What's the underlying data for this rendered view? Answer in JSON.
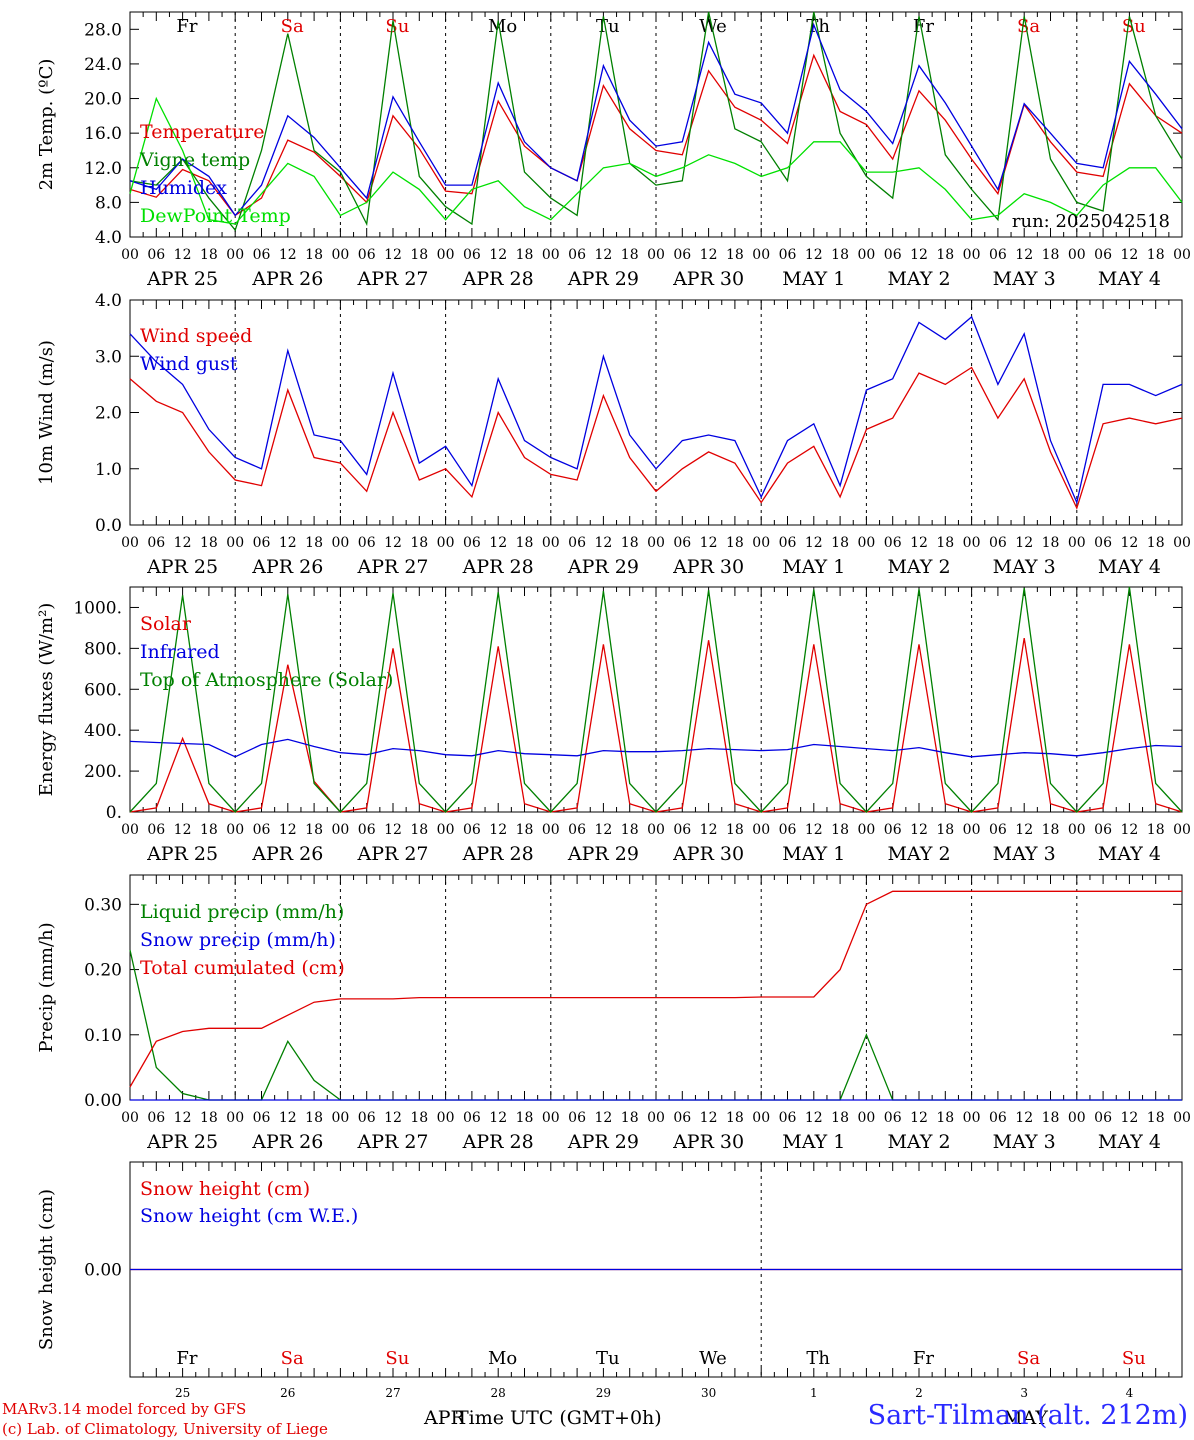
{
  "chart_data": [
    {
      "type": "line",
      "ylabel": "2m Temp. (ºC)",
      "yticks": [
        "4.0",
        "8.0",
        "12.0",
        "16.0",
        "20.0",
        "24.0",
        "28.0"
      ],
      "ylim": [
        4,
        30
      ],
      "x_hours": [
        0,
        6,
        12,
        18,
        24,
        30,
        36,
        42,
        48,
        54,
        60,
        66,
        72,
        78,
        84,
        90,
        96,
        102,
        108,
        114,
        120,
        126,
        132,
        138,
        144,
        150,
        156,
        162,
        168,
        174,
        180,
        186,
        192,
        198,
        204,
        210,
        216,
        222,
        228,
        234,
        240
      ],
      "weekdays": [
        "Fr",
        "Sa",
        "Su",
        "Mo",
        "Tu",
        "We",
        "Th",
        "Fr",
        "Sa",
        "Su"
      ],
      "weekday_colors": [
        "#000000",
        "#e00000",
        "#e00000",
        "#000000",
        "#000000",
        "#000000",
        "#000000",
        "#000000",
        "#e00000",
        "#e00000"
      ],
      "annotation": "run: 2025042518",
      "series": [
        {
          "name": "Temperature",
          "color": "#e00000",
          "values": [
            9.5,
            8.6,
            11.8,
            10.5,
            6.5,
            8.5,
            15.2,
            13.8,
            11.0,
            8.0,
            18.0,
            14.2,
            9.3,
            9.0,
            19.7,
            14.5,
            12.0,
            10.5,
            21.5,
            16.5,
            14.0,
            13.5,
            23.2,
            19.0,
            17.5,
            14.8,
            25.0,
            18.5,
            17.0,
            13.0,
            20.9,
            17.5,
            13.0,
            9.0,
            19.3,
            15.0,
            11.5,
            11.0,
            21.7,
            18.0,
            16.0
          ]
        },
        {
          "name": "Vigne temp",
          "color": "#008000",
          "values": [
            10.5,
            10.0,
            13.0,
            8.5,
            4.8,
            14.0,
            27.5,
            14.0,
            11.5,
            5.5,
            29.0,
            11.0,
            7.5,
            5.5,
            29.0,
            11.5,
            8.5,
            6.5,
            29.5,
            12.5,
            10.0,
            10.5,
            31.0,
            16.5,
            15.0,
            10.5,
            31.0,
            16.0,
            11.0,
            8.5,
            29.5,
            13.5,
            9.5,
            6.0,
            29.5,
            13.0,
            8.0,
            7.0,
            29.5,
            18.0,
            13.0
          ]
        },
        {
          "name": "Humidex",
          "color": "#0000e0",
          "values": [
            10.5,
            9.5,
            13.0,
            11.0,
            6.5,
            10.0,
            18.0,
            15.5,
            12.0,
            8.5,
            20.2,
            15.0,
            10.0,
            10.0,
            21.8,
            15.0,
            12.0,
            10.5,
            23.8,
            17.5,
            14.5,
            15.0,
            26.5,
            20.5,
            19.5,
            16.0,
            28.5,
            21.0,
            18.5,
            14.8,
            23.8,
            19.5,
            14.5,
            9.5,
            19.4,
            16.0,
            12.5,
            12.0,
            24.3,
            20.5,
            16.5
          ]
        },
        {
          "name": "DewPoint Temp",
          "color": "#00e000",
          "values": [
            9.0,
            20.0,
            14.0,
            6.0,
            5.5,
            9.0,
            12.5,
            11.0,
            6.5,
            8.0,
            11.5,
            9.5,
            6.0,
            9.5,
            10.5,
            7.5,
            6.0,
            9.0,
            12.0,
            12.5,
            11.0,
            12.0,
            13.5,
            12.5,
            11.0,
            12.0,
            15.0,
            15.0,
            11.5,
            11.5,
            12.0,
            9.5,
            6.0,
            6.5,
            9.0,
            8.0,
            6.5,
            10.0,
            12.0,
            12.0,
            8.0
          ]
        }
      ]
    },
    {
      "type": "line",
      "ylabel": "10m Wind (m/s)",
      "yticks": [
        "0.0",
        "1.0",
        "2.0",
        "3.0",
        "4.0"
      ],
      "ylim": [
        0,
        4
      ],
      "x_hours": [
        0,
        6,
        12,
        18,
        24,
        30,
        36,
        42,
        48,
        54,
        60,
        66,
        72,
        78,
        84,
        90,
        96,
        102,
        108,
        114,
        120,
        126,
        132,
        138,
        144,
        150,
        156,
        162,
        168,
        174,
        180,
        186,
        192,
        198,
        204,
        210,
        216,
        222,
        228,
        234,
        240
      ],
      "series": [
        {
          "name": "Wind speed",
          "color": "#e00000",
          "values": [
            2.6,
            2.2,
            2.0,
            1.3,
            0.8,
            0.7,
            2.4,
            1.2,
            1.1,
            0.6,
            2.0,
            0.8,
            1.0,
            0.5,
            2.0,
            1.2,
            0.9,
            0.8,
            2.3,
            1.2,
            0.6,
            1.0,
            1.3,
            1.1,
            0.4,
            1.1,
            1.4,
            0.5,
            1.7,
            1.9,
            2.7,
            2.5,
            2.8,
            1.9,
            2.6,
            1.3,
            0.3,
            1.8,
            1.9,
            1.8,
            1.9
          ]
        },
        {
          "name": "Wind gust",
          "color": "#0000e0",
          "values": [
            3.4,
            2.9,
            2.5,
            1.7,
            1.2,
            1.0,
            3.1,
            1.6,
            1.5,
            0.9,
            2.7,
            1.1,
            1.4,
            0.7,
            2.6,
            1.5,
            1.2,
            1.0,
            3.0,
            1.6,
            1.0,
            1.5,
            1.6,
            1.5,
            0.5,
            1.5,
            1.8,
            0.7,
            2.4,
            2.6,
            3.6,
            3.3,
            3.7,
            2.5,
            3.4,
            1.5,
            0.4,
            2.5,
            2.5,
            2.3,
            2.5
          ]
        }
      ]
    },
    {
      "type": "line",
      "ylabel": "Energy fluxes (W/m²)",
      "yticks": [
        "0.",
        "200.",
        "400.",
        "600.",
        "800.",
        "1000."
      ],
      "ylim": [
        0,
        1100
      ],
      "x_hours": [
        0,
        6,
        12,
        18,
        24,
        30,
        36,
        42,
        48,
        54,
        60,
        66,
        72,
        78,
        84,
        90,
        96,
        102,
        108,
        114,
        120,
        126,
        132,
        138,
        144,
        150,
        156,
        162,
        168,
        174,
        180,
        186,
        192,
        198,
        204,
        210,
        216,
        222,
        228,
        234,
        240
      ],
      "series": [
        {
          "name": "Solar",
          "color": "#e00000",
          "values": [
            0,
            20,
            360,
            40,
            0,
            20,
            720,
            150,
            0,
            20,
            800,
            40,
            0,
            20,
            810,
            40,
            0,
            20,
            820,
            40,
            0,
            20,
            840,
            40,
            0,
            20,
            820,
            40,
            0,
            20,
            820,
            40,
            0,
            20,
            850,
            40,
            0,
            20,
            820,
            40,
            0
          ]
        },
        {
          "name": "Infrared",
          "color": "#0000e0",
          "values": [
            345,
            340,
            335,
            330,
            270,
            330,
            355,
            320,
            290,
            280,
            310,
            300,
            280,
            275,
            300,
            285,
            280,
            275,
            300,
            295,
            295,
            300,
            310,
            305,
            300,
            305,
            330,
            320,
            310,
            300,
            315,
            290,
            270,
            280,
            290,
            285,
            275,
            290,
            310,
            325,
            320
          ]
        },
        {
          "name": "Top of Atmosphere (Solar)",
          "color": "#008000",
          "values": [
            0,
            140,
            1060,
            140,
            0,
            140,
            1065,
            140,
            0,
            140,
            1070,
            140,
            0,
            140,
            1075,
            140,
            0,
            140,
            1080,
            140,
            0,
            140,
            1085,
            140,
            0,
            140,
            1088,
            140,
            0,
            140,
            1090,
            140,
            0,
            140,
            1095,
            140,
            0,
            140,
            1100,
            140,
            0
          ]
        }
      ]
    },
    {
      "type": "line",
      "ylabel": "Precip (mm/h)",
      "yticks": [
        "0.00",
        "0.10",
        "0.20",
        "0.30"
      ],
      "ylim": [
        0,
        0.345
      ],
      "x_hours": [
        0,
        6,
        12,
        18,
        24,
        30,
        36,
        42,
        48,
        54,
        60,
        66,
        72,
        78,
        84,
        90,
        96,
        102,
        108,
        114,
        120,
        126,
        132,
        138,
        144,
        150,
        156,
        162,
        168,
        174,
        180,
        186,
        192,
        198,
        204,
        210,
        216,
        222,
        228,
        234,
        240
      ],
      "series": [
        {
          "name": "Liquid precip (mm/h)",
          "color": "#008000",
          "values": [
            0.23,
            0.05,
            0.01,
            0.0,
            0.0,
            0.0,
            0.09,
            0.03,
            0.0,
            0.0,
            0.0,
            0.0,
            0.0,
            0.0,
            0.0,
            0.0,
            0.0,
            0.0,
            0.0,
            0.0,
            0.0,
            0.0,
            0.0,
            0.0,
            0.0,
            0.0,
            0.0,
            0.0,
            0.1,
            0.0,
            0.0,
            0.0,
            0.0,
            0.0,
            0.0,
            0.0,
            0.0,
            0.0,
            0.0,
            0.0,
            0.0
          ]
        },
        {
          "name": "Snow precip (mm/h)",
          "color": "#0000e0",
          "values": [
            0,
            0,
            0,
            0,
            0,
            0,
            0,
            0,
            0,
            0,
            0,
            0,
            0,
            0,
            0,
            0,
            0,
            0,
            0,
            0,
            0,
            0,
            0,
            0,
            0,
            0,
            0,
            0,
            0,
            0,
            0,
            0,
            0,
            0,
            0,
            0,
            0,
            0,
            0,
            0,
            0
          ]
        },
        {
          "name": "Total cumulated (cm)",
          "color": "#e00000",
          "values": [
            0.02,
            0.09,
            0.105,
            0.11,
            0.11,
            0.11,
            0.13,
            0.15,
            0.155,
            0.155,
            0.155,
            0.157,
            0.157,
            0.157,
            0.157,
            0.157,
            0.157,
            0.157,
            0.157,
            0.157,
            0.157,
            0.157,
            0.157,
            0.157,
            0.158,
            0.158,
            0.158,
            0.2,
            0.3,
            0.32,
            0.32,
            0.32,
            0.32,
            0.32,
            0.32,
            0.32,
            0.32,
            0.32,
            0.32,
            0.32,
            0.32
          ]
        }
      ]
    },
    {
      "type": "line",
      "ylabel": "Snow height (cm)",
      "yticks": [
        "0.00"
      ],
      "ylim": [
        -1,
        1
      ],
      "x_hours": [
        0,
        240
      ],
      "weekdays": [
        "Fr",
        "Sa",
        "Su",
        "Mo",
        "Tu",
        "We",
        "Th",
        "Fr",
        "Sa",
        "Su"
      ],
      "day_numbers": [
        "25",
        "26",
        "27",
        "28",
        "29",
        "30",
        "1",
        "2",
        "3",
        "4"
      ],
      "series": [
        {
          "name": "Snow height (cm)",
          "color": "#e00000",
          "values": [
            0,
            0
          ]
        },
        {
          "name": "Snow height (cm W.E.)",
          "color": "#0000e0",
          "values": [
            0,
            0
          ]
        }
      ]
    }
  ],
  "axes": {
    "hour_ticks": [
      "00",
      "06",
      "12",
      "18"
    ],
    "end_tick": "00",
    "date_labels": [
      "APR 25",
      "APR 26",
      "APR 27",
      "APR 28",
      "APR 29",
      "APR 30",
      "MAY  1",
      "MAY  2",
      "MAY  3",
      "MAY  4"
    ],
    "xlabel": "Time UTC (GMT+0h)",
    "month_left": "APR",
    "month_right": "MAY"
  },
  "footer": {
    "line1": "MARv3.14 model forced by GFS",
    "line2": "(c) Lab. of Climatology, University of Liege",
    "station": "Sart-Tilman (alt. 212m)"
  }
}
